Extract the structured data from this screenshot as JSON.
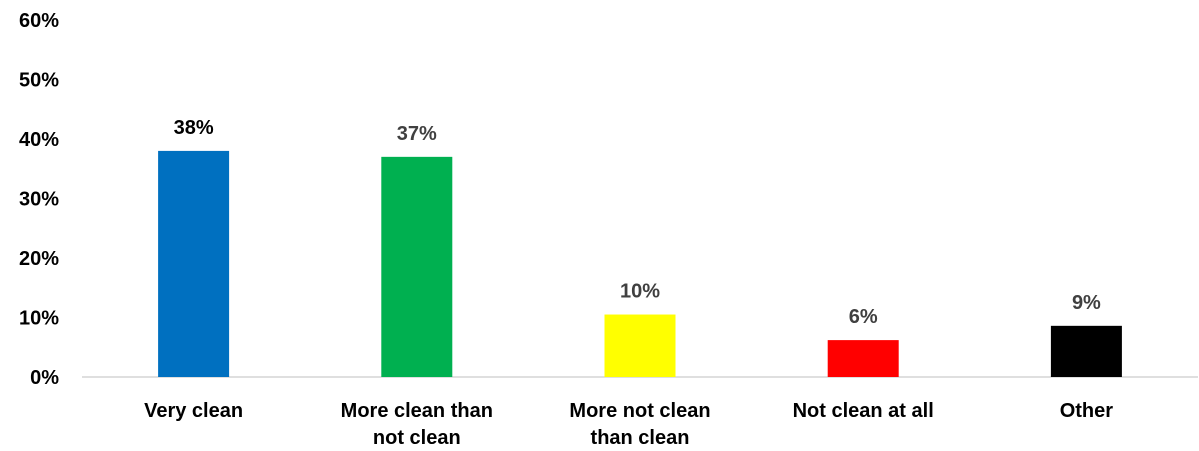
{
  "chart_data": {
    "type": "bar",
    "title": "",
    "xlabel": "",
    "ylabel": "",
    "ylim": [
      0,
      60
    ],
    "yticks": [
      "0%",
      "10%",
      "20%",
      "30%",
      "40%",
      "50%",
      "60%"
    ],
    "grid": false,
    "legend": "none",
    "categories": [
      [
        "Very clean"
      ],
      [
        "More clean than",
        "not clean"
      ],
      [
        "More not clean",
        "than clean"
      ],
      [
        "Not clean at all"
      ],
      [
        "Other"
      ]
    ],
    "values": [
      38,
      37,
      10.5,
      6.2,
      8.6
    ],
    "data_labels": [
      "38%",
      "37%",
      "10%",
      "6%",
      "9%"
    ],
    "colors": [
      "#0070C0",
      "#00B050",
      "#FFFF00",
      "#FF0000",
      "#000000"
    ],
    "label_colors": [
      "#000000",
      "#404040",
      "#404040",
      "#404040",
      "#404040"
    ]
  }
}
